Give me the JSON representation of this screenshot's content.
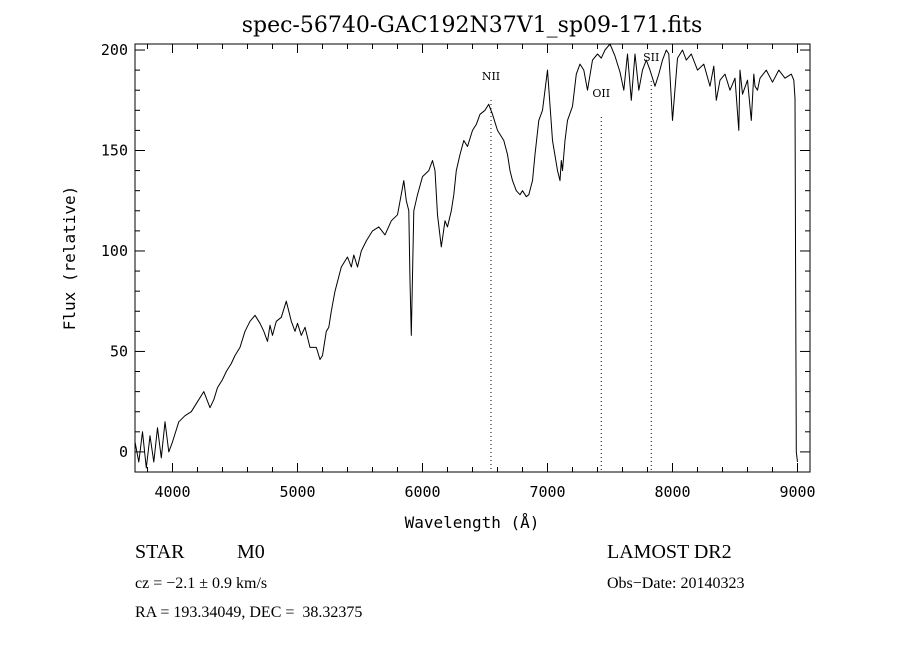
{
  "chart_data": {
    "type": "line",
    "title": "spec-56740-GAC192N37V1_sp09-171.fits",
    "xlabel": "Wavelength (Å)",
    "ylabel": "Flux (relative)",
    "xlim": [
      3700,
      9100
    ],
    "ylim": [
      -10,
      203
    ],
    "xticks": [
      4000,
      5000,
      6000,
      7000,
      8000,
      9000
    ],
    "yticks": [
      0,
      50,
      100,
      150,
      200
    ],
    "grid": false,
    "line_color": "#000000",
    "lines": [
      {
        "name": "NII",
        "x": 6548
      },
      {
        "name": "OII",
        "x": 7430
      },
      {
        "name": "SII",
        "x": 7830
      }
    ],
    "series": [
      {
        "x": [
          3700,
          3730,
          3760,
          3790,
          3820,
          3850,
          3880,
          3910,
          3940,
          3970,
          4000,
          4050,
          4100,
          4150,
          4200,
          4250,
          4300,
          4330,
          4360,
          4400,
          4430,
          4470,
          4500,
          4540,
          4580,
          4620,
          4660,
          4700,
          4730,
          4760,
          4780,
          4800,
          4830,
          4870,
          4910,
          4950,
          4980,
          5000,
          5030,
          5060,
          5100,
          5150,
          5180,
          5200,
          5230,
          5250,
          5270,
          5300,
          5350,
          5400,
          5430,
          5450,
          5480,
          5510,
          5550,
          5600,
          5650,
          5700,
          5750,
          5800,
          5850,
          5870,
          5890,
          5900,
          5910,
          5930,
          5960,
          6000,
          6050,
          6080,
          6100,
          6120,
          6150,
          6180,
          6200,
          6230,
          6250,
          6270,
          6300,
          6330,
          6360,
          6400,
          6430,
          6460,
          6500,
          6530,
          6560,
          6600,
          6650,
          6680,
          6700,
          6720,
          6750,
          6780,
          6800,
          6830,
          6850,
          6880,
          6900,
          6930,
          6960,
          7000,
          7040,
          7080,
          7100,
          7110,
          7120,
          7140,
          7160,
          7200,
          7230,
          7260,
          7290,
          7320,
          7360,
          7400,
          7430,
          7460,
          7500,
          7540,
          7580,
          7610,
          7640,
          7670,
          7700,
          7730,
          7760,
          7790,
          7820,
          7860,
          7890,
          7920,
          7950,
          7970,
          8000,
          8040,
          8080,
          8110,
          8150,
          8200,
          8250,
          8300,
          8330,
          8350,
          8380,
          8420,
          8460,
          8500,
          8530,
          8540,
          8560,
          8600,
          8630,
          8650,
          8660,
          8680,
          8700,
          8750,
          8800,
          8850,
          8900,
          8950,
          8970,
          8980,
          8985,
          8990,
          9000
        ],
        "y": [
          5,
          -5,
          10,
          -8,
          8,
          -5,
          12,
          -3,
          15,
          0,
          5,
          15,
          18,
          20,
          25,
          30,
          22,
          26,
          32,
          36,
          40,
          44,
          48,
          52,
          60,
          65,
          68,
          64,
          60,
          55,
          63,
          58,
          65,
          67,
          75,
          65,
          60,
          64,
          58,
          62,
          52,
          52,
          46,
          48,
          60,
          62,
          70,
          80,
          92,
          97,
          92,
          98,
          92,
          100,
          105,
          110,
          112,
          108,
          115,
          118,
          135,
          125,
          120,
          85,
          58,
          120,
          128,
          137,
          140,
          145,
          140,
          118,
          102,
          115,
          112,
          120,
          128,
          140,
          148,
          155,
          152,
          160,
          163,
          168,
          170,
          173,
          168,
          160,
          155,
          148,
          140,
          135,
          130,
          128,
          130,
          127,
          128,
          135,
          148,
          165,
          170,
          190,
          155,
          140,
          135,
          145,
          140,
          155,
          165,
          172,
          188,
          193,
          190,
          180,
          195,
          198,
          196,
          200,
          203,
          197,
          189,
          180,
          198,
          175,
          198,
          180,
          190,
          195,
          190,
          182,
          188,
          195,
          200,
          198,
          165,
          196,
          200,
          195,
          198,
          190,
          193,
          182,
          192,
          175,
          185,
          188,
          180,
          186,
          160,
          190,
          178,
          185,
          165,
          188,
          182,
          180,
          186,
          190,
          184,
          190,
          186,
          188,
          185,
          176,
          90,
          0,
          -5
        ]
      }
    ]
  },
  "info": {
    "object_class": "STAR",
    "subclass": "M0",
    "survey": "LAMOST DR2",
    "redshift": "cz = −2.1 ± 0.9 km/s",
    "obs_date": "Obs−Date: 20140323",
    "coords": "RA = 193.34049, DEC =  38.32375"
  }
}
